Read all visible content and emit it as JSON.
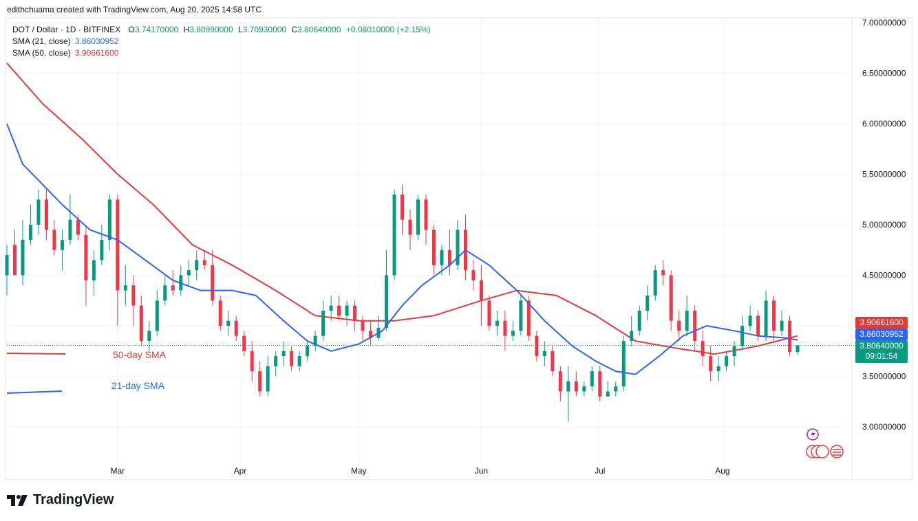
{
  "credit": "edithchuama created with TradingView.com, Aug 20, 2025 14:58 UTC",
  "legend": {
    "symbol": "DOT / Dollar · 1D · BITFINEX",
    "o_label": "O",
    "o": "3.74170000",
    "h_label": "H",
    "h": "3.80990000",
    "l_label": "L",
    "l": "3.70930000",
    "c_label": "C",
    "c": "3.80640000",
    "change": "+0.08010000 (+2.15%)",
    "sma21_label": "SMA (21, close)",
    "sma21_value": "3.86030952",
    "sma50_label": "SMA (50, close)",
    "sma50_value": "3.90661600"
  },
  "price_tags": {
    "sma50": "3.90661600",
    "sma21": "3.86030952",
    "last": "3.80640000",
    "countdown": "09:01:54"
  },
  "annotations": {
    "sma50": "50-day SMA",
    "sma21": "21-day SMA"
  },
  "branding": {
    "logo_text": "TradingView"
  },
  "colors": {
    "up": "#089981",
    "down": "#f23645",
    "sma21": "#2962ff",
    "sma50": "#e53935",
    "grid": "#f0f3fa"
  },
  "chart_data": {
    "type": "candlestick",
    "title": "DOT / Dollar · 1D · BITFINEX",
    "ylim": [
      2.7,
      7.05
    ],
    "y_ticks": [
      "7.00000000",
      "6.50000000",
      "6.00000000",
      "5.50000000",
      "5.00000000",
      "4.50000000",
      "4.00000000",
      "3.50000000",
      "3.00000000"
    ],
    "x_ticks": [
      "Mar",
      "Apr",
      "May",
      "Jun",
      "Jul",
      "Aug"
    ],
    "x_range": [
      "2025-02-01",
      "2025-08-28"
    ],
    "x_tick_dates": [
      "2025-03-01",
      "2025-04-01",
      "2025-05-01",
      "2025-06-01",
      "2025-07-01",
      "2025-08-01"
    ],
    "last_price": 3.8064,
    "series": [
      {
        "name": "SMA (21, close)",
        "points": [
          [
            "2025-02-01",
            6.0
          ],
          [
            "2025-02-05",
            5.6
          ],
          [
            "2025-02-10",
            5.4
          ],
          [
            "2025-02-15",
            5.2
          ],
          [
            "2025-02-22",
            4.95
          ],
          [
            "2025-03-01",
            4.85
          ],
          [
            "2025-03-08",
            4.65
          ],
          [
            "2025-03-15",
            4.45
          ],
          [
            "2025-03-22",
            4.35
          ],
          [
            "2025-03-30",
            4.35
          ],
          [
            "2025-04-05",
            4.3
          ],
          [
            "2025-04-12",
            4.05
          ],
          [
            "2025-04-18",
            3.85
          ],
          [
            "2025-04-24",
            3.75
          ],
          [
            "2025-05-01",
            3.82
          ],
          [
            "2025-05-07",
            3.95
          ],
          [
            "2025-05-12",
            4.2
          ],
          [
            "2025-05-17",
            4.4
          ],
          [
            "2025-05-24",
            4.6
          ],
          [
            "2025-05-28",
            4.75
          ],
          [
            "2025-06-03",
            4.6
          ],
          [
            "2025-06-10",
            4.35
          ],
          [
            "2025-06-17",
            4.05
          ],
          [
            "2025-06-24",
            3.8
          ],
          [
            "2025-06-30",
            3.65
          ],
          [
            "2025-07-05",
            3.55
          ],
          [
            "2025-07-10",
            3.52
          ],
          [
            "2025-07-16",
            3.7
          ],
          [
            "2025-07-22",
            3.9
          ],
          [
            "2025-07-28",
            4.0
          ],
          [
            "2025-08-04",
            3.95
          ],
          [
            "2025-08-10",
            3.9
          ],
          [
            "2025-08-17",
            3.88
          ],
          [
            "2025-08-20",
            3.86
          ]
        ]
      },
      {
        "name": "SMA (50, close)",
        "points": [
          [
            "2025-02-01",
            6.6
          ],
          [
            "2025-02-10",
            6.2
          ],
          [
            "2025-02-20",
            5.85
          ],
          [
            "2025-03-01",
            5.5
          ],
          [
            "2025-03-10",
            5.2
          ],
          [
            "2025-03-20",
            4.8
          ],
          [
            "2025-03-30",
            4.6
          ],
          [
            "2025-04-10",
            4.35
          ],
          [
            "2025-04-20",
            4.1
          ],
          [
            "2025-05-01",
            4.05
          ],
          [
            "2025-05-10",
            4.05
          ],
          [
            "2025-05-20",
            4.1
          ],
          [
            "2025-06-01",
            4.25
          ],
          [
            "2025-06-10",
            4.35
          ],
          [
            "2025-06-20",
            4.3
          ],
          [
            "2025-06-30",
            4.1
          ],
          [
            "2025-07-10",
            3.85
          ],
          [
            "2025-07-20",
            3.78
          ],
          [
            "2025-07-30",
            3.72
          ],
          [
            "2025-08-10",
            3.8
          ],
          [
            "2025-08-20",
            3.9
          ]
        ]
      }
    ],
    "candles": [
      [
        "2025-02-01",
        4.5,
        4.8,
        4.7,
        4.3
      ],
      [
        "2025-02-03",
        4.8,
        4.95,
        4.5,
        4.5
      ],
      [
        "2025-02-05",
        4.5,
        5.05,
        4.85,
        4.4
      ],
      [
        "2025-02-07",
        4.85,
        5.2,
        5.0,
        4.8
      ],
      [
        "2025-02-09",
        5.0,
        5.35,
        5.25,
        4.9
      ],
      [
        "2025-02-11",
        5.25,
        5.35,
        4.95,
        4.85
      ],
      [
        "2025-02-13",
        4.95,
        5.05,
        4.75,
        4.7
      ],
      [
        "2025-02-15",
        4.75,
        4.95,
        4.85,
        4.55
      ],
      [
        "2025-02-17",
        4.85,
        5.3,
        5.05,
        4.8
      ],
      [
        "2025-02-19",
        5.05,
        5.1,
        4.9,
        4.85
      ],
      [
        "2025-02-21",
        4.9,
        5.0,
        4.45,
        4.2
      ],
      [
        "2025-02-23",
        4.45,
        4.75,
        4.65,
        4.3
      ],
      [
        "2025-02-25",
        4.65,
        5.0,
        4.85,
        4.6
      ],
      [
        "2025-02-27",
        4.85,
        5.3,
        5.25,
        4.75
      ],
      [
        "2025-03-01",
        5.25,
        5.3,
        4.35,
        4.0
      ],
      [
        "2025-03-03",
        4.35,
        4.6,
        4.4,
        4.2
      ],
      [
        "2025-03-05",
        4.4,
        4.5,
        4.2,
        4.0
      ],
      [
        "2025-03-07",
        4.2,
        4.3,
        3.85,
        3.8
      ],
      [
        "2025-03-09",
        3.85,
        4.05,
        3.95,
        3.75
      ],
      [
        "2025-03-11",
        3.95,
        4.35,
        4.25,
        3.9
      ],
      [
        "2025-03-13",
        4.25,
        4.5,
        4.4,
        4.2
      ],
      [
        "2025-03-15",
        4.4,
        4.55,
        4.35,
        4.3
      ],
      [
        "2025-03-17",
        4.35,
        4.6,
        4.5,
        4.3
      ],
      [
        "2025-03-19",
        4.5,
        4.65,
        4.55,
        4.4
      ],
      [
        "2025-03-21",
        4.55,
        4.75,
        4.65,
        4.45
      ],
      [
        "2025-03-23",
        4.65,
        4.75,
        4.6,
        4.55
      ],
      [
        "2025-03-25",
        4.6,
        4.75,
        4.25,
        4.2
      ],
      [
        "2025-03-27",
        4.25,
        4.3,
        4.0,
        3.95
      ],
      [
        "2025-03-29",
        4.0,
        4.15,
        4.05,
        3.9
      ],
      [
        "2025-03-31",
        4.05,
        4.1,
        3.9,
        3.85
      ],
      [
        "2025-04-02",
        3.9,
        3.95,
        3.75,
        3.7
      ],
      [
        "2025-04-04",
        3.75,
        3.85,
        3.55,
        3.45
      ],
      [
        "2025-04-06",
        3.55,
        3.65,
        3.35,
        3.3
      ],
      [
        "2025-04-08",
        3.35,
        3.7,
        3.6,
        3.3
      ],
      [
        "2025-04-10",
        3.6,
        3.75,
        3.7,
        3.5
      ],
      [
        "2025-04-12",
        3.7,
        3.85,
        3.75,
        3.6
      ],
      [
        "2025-04-14",
        3.75,
        3.8,
        3.6,
        3.55
      ],
      [
        "2025-04-16",
        3.6,
        3.75,
        3.7,
        3.55
      ],
      [
        "2025-04-18",
        3.7,
        3.85,
        3.8,
        3.65
      ],
      [
        "2025-04-20",
        3.8,
        3.95,
        3.9,
        3.75
      ],
      [
        "2025-04-22",
        3.9,
        4.25,
        4.15,
        3.85
      ],
      [
        "2025-04-24",
        4.15,
        4.3,
        4.2,
        4.05
      ],
      [
        "2025-04-26",
        4.2,
        4.3,
        4.1,
        4.05
      ],
      [
        "2025-04-28",
        4.1,
        4.25,
        4.2,
        4.0
      ],
      [
        "2025-04-30",
        4.2,
        4.25,
        4.05,
        3.95
      ],
      [
        "2025-05-02",
        4.05,
        4.1,
        3.95,
        3.85
      ],
      [
        "2025-05-04",
        3.95,
        4.05,
        3.88,
        3.8
      ],
      [
        "2025-05-06",
        3.88,
        4.1,
        3.98,
        3.85
      ],
      [
        "2025-05-08",
        3.98,
        4.75,
        4.5,
        3.95
      ],
      [
        "2025-05-10",
        4.5,
        5.35,
        5.3,
        4.45
      ],
      [
        "2025-05-12",
        5.3,
        5.4,
        5.05,
        4.9
      ],
      [
        "2025-05-14",
        5.05,
        5.15,
        4.9,
        4.75
      ],
      [
        "2025-05-16",
        4.9,
        5.3,
        5.25,
        4.85
      ],
      [
        "2025-05-18",
        5.25,
        5.3,
        4.95,
        4.8
      ],
      [
        "2025-05-20",
        4.95,
        5.0,
        4.6,
        4.5
      ],
      [
        "2025-05-22",
        4.6,
        4.8,
        4.75,
        4.5
      ],
      [
        "2025-05-24",
        4.75,
        4.95,
        4.6,
        4.5
      ],
      [
        "2025-05-26",
        4.6,
        5.05,
        4.95,
        4.55
      ],
      [
        "2025-05-28",
        4.95,
        5.1,
        4.55,
        4.45
      ],
      [
        "2025-05-30",
        4.55,
        4.65,
        4.45,
        4.35
      ],
      [
        "2025-06-01",
        4.45,
        4.6,
        4.25,
        4.0
      ],
      [
        "2025-06-03",
        4.25,
        4.3,
        4.0,
        3.95
      ],
      [
        "2025-06-05",
        4.0,
        4.15,
        4.05,
        3.9
      ],
      [
        "2025-06-07",
        4.05,
        4.15,
        3.9,
        3.75
      ],
      [
        "2025-06-09",
        3.9,
        4.05,
        3.95,
        3.85
      ],
      [
        "2025-06-11",
        3.95,
        4.3,
        4.25,
        3.9
      ],
      [
        "2025-06-13",
        4.25,
        4.3,
        3.9,
        3.85
      ],
      [
        "2025-06-15",
        3.9,
        3.95,
        3.7,
        3.65
      ],
      [
        "2025-06-17",
        3.7,
        3.85,
        3.75,
        3.6
      ],
      [
        "2025-06-19",
        3.75,
        3.8,
        3.55,
        3.5
      ],
      [
        "2025-06-21",
        3.55,
        3.6,
        3.35,
        3.25
      ],
      [
        "2025-06-23",
        3.35,
        3.6,
        3.45,
        3.05
      ],
      [
        "2025-06-25",
        3.45,
        3.55,
        3.35,
        3.3
      ],
      [
        "2025-06-27",
        3.35,
        3.45,
        3.4,
        3.3
      ],
      [
        "2025-06-29",
        3.4,
        3.6,
        3.55,
        3.35
      ],
      [
        "2025-07-01",
        3.55,
        3.6,
        3.3,
        3.25
      ],
      [
        "2025-07-03",
        3.3,
        3.45,
        3.35,
        3.3
      ],
      [
        "2025-07-05",
        3.35,
        3.45,
        3.4,
        3.3
      ],
      [
        "2025-07-07",
        3.4,
        3.9,
        3.85,
        3.35
      ],
      [
        "2025-07-09",
        3.85,
        4.1,
        3.95,
        3.8
      ],
      [
        "2025-07-11",
        3.95,
        4.2,
        4.15,
        3.9
      ],
      [
        "2025-07-13",
        4.15,
        4.4,
        4.3,
        4.05
      ],
      [
        "2025-07-15",
        4.3,
        4.6,
        4.55,
        4.25
      ],
      [
        "2025-07-17",
        4.55,
        4.65,
        4.5,
        4.4
      ],
      [
        "2025-07-19",
        4.5,
        4.55,
        4.05,
        3.95
      ],
      [
        "2025-07-21",
        4.05,
        4.15,
        3.95,
        3.85
      ],
      [
        "2025-07-23",
        3.95,
        4.3,
        4.15,
        3.9
      ],
      [
        "2025-07-25",
        4.15,
        4.2,
        3.85,
        3.75
      ],
      [
        "2025-07-27",
        3.85,
        3.95,
        3.7,
        3.6
      ],
      [
        "2025-07-29",
        3.7,
        3.8,
        3.55,
        3.45
      ],
      [
        "2025-07-31",
        3.55,
        3.7,
        3.6,
        3.45
      ],
      [
        "2025-08-02",
        3.6,
        3.75,
        3.7,
        3.55
      ],
      [
        "2025-08-04",
        3.7,
        3.85,
        3.8,
        3.6
      ],
      [
        "2025-08-06",
        3.8,
        4.1,
        4.0,
        3.75
      ],
      [
        "2025-08-08",
        4.0,
        4.2,
        4.1,
        3.95
      ],
      [
        "2025-08-10",
        4.1,
        4.15,
        3.9,
        3.85
      ],
      [
        "2025-08-12",
        3.9,
        4.35,
        4.25,
        3.85
      ],
      [
        "2025-08-14",
        4.25,
        4.3,
        3.95,
        3.85
      ],
      [
        "2025-08-16",
        3.95,
        4.15,
        4.05,
        3.9
      ],
      [
        "2025-08-18",
        4.05,
        4.1,
        3.74,
        3.7
      ],
      [
        "2025-08-20",
        3.74,
        3.81,
        3.8064,
        3.7093
      ]
    ]
  }
}
